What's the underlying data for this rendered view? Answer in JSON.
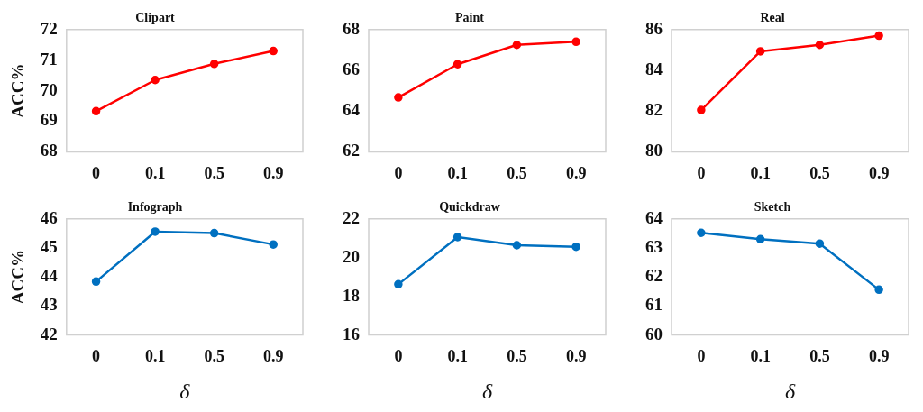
{
  "chart_data": [
    {
      "type": "line",
      "title": "Clipart",
      "ylabel": "ACC%",
      "categories": [
        "0",
        "0.1",
        "0.5",
        "0.9"
      ],
      "marker": "circle",
      "ylim": [
        68,
        72
      ],
      "yticks": [
        68,
        69,
        70,
        71,
        72
      ],
      "series": [
        {
          "color": "#ff0000",
          "values": [
            69.33,
            70.35,
            70.88,
            71.3
          ]
        }
      ]
    },
    {
      "type": "line",
      "title": "Paint",
      "categories": [
        "0",
        "0.1",
        "0.5",
        "0.9"
      ],
      "marker": "circle",
      "ylim": [
        62,
        68
      ],
      "yticks": [
        62,
        64,
        66,
        68
      ],
      "series": [
        {
          "color": "#ff0000",
          "values": [
            64.67,
            66.3,
            67.25,
            67.4
          ]
        }
      ]
    },
    {
      "type": "line",
      "title": "Real",
      "categories": [
        "0",
        "0.1",
        "0.5",
        "0.9"
      ],
      "marker": "circle",
      "ylim": [
        80,
        86
      ],
      "yticks": [
        80,
        82,
        84,
        86
      ],
      "series": [
        {
          "color": "#ff0000",
          "values": [
            82.05,
            84.93,
            85.25,
            85.7
          ]
        }
      ]
    },
    {
      "type": "line",
      "title": "Infograph",
      "ylabel": "ACC%",
      "xlabel": "δ",
      "categories": [
        "0",
        "0.1",
        "0.5",
        "0.9"
      ],
      "marker": "circle",
      "ylim": [
        42,
        46
      ],
      "yticks": [
        42,
        43,
        44,
        45,
        46
      ],
      "series": [
        {
          "color": "#0070c0",
          "values": [
            43.84,
            45.56,
            45.51,
            45.12
          ]
        }
      ]
    },
    {
      "type": "line",
      "title": "Quickdraw",
      "xlabel": "δ",
      "categories": [
        "0",
        "0.1",
        "0.5",
        "0.9"
      ],
      "marker": "circle",
      "ylim": [
        16,
        22
      ],
      "yticks": [
        16,
        18,
        20,
        22
      ],
      "series": [
        {
          "color": "#0070c0",
          "values": [
            18.62,
            21.06,
            20.64,
            20.56
          ]
        }
      ]
    },
    {
      "type": "line",
      "title": "Sketch",
      "xlabel": "δ",
      "categories": [
        "0",
        "0.1",
        "0.5",
        "0.9"
      ],
      "marker": "circle",
      "ylim": [
        60,
        64
      ],
      "yticks": [
        60,
        61,
        62,
        63,
        64
      ],
      "series": [
        {
          "color": "#0070c0",
          "values": [
            63.52,
            63.3,
            63.15,
            61.56
          ]
        }
      ]
    }
  ]
}
